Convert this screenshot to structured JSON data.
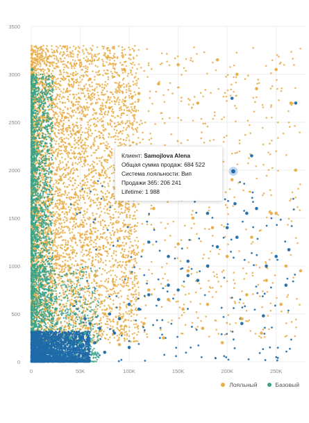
{
  "chart_data": {
    "type": "scatter",
    "x_ticks": [
      "0",
      "50K",
      "100K",
      "150K",
      "200K",
      "250K"
    ],
    "x_tick_values": [
      0,
      50000,
      100000,
      150000,
      200000,
      250000
    ],
    "y_ticks": [
      "0",
      "500",
      "1000",
      "1500",
      "2000",
      "2500",
      "3000",
      "3500"
    ],
    "y_tick_values": [
      0,
      500,
      1000,
      1500,
      2000,
      2500,
      3000,
      3500
    ],
    "xlim": [
      0,
      280000
    ],
    "ylim": [
      0,
      3500
    ],
    "grid": true,
    "legend_position": "bottom-right",
    "series": [
      {
        "name": "Лояльный",
        "color": "#e8ad45",
        "points": [
          [
            5000,
            3150
          ],
          [
            12000,
            2900
          ],
          [
            22000,
            2700
          ],
          [
            35000,
            2550
          ],
          [
            48000,
            2400
          ],
          [
            60000,
            2950
          ],
          [
            80000,
            2650
          ],
          [
            95000,
            3050
          ],
          [
            110000,
            2800
          ],
          [
            130000,
            2900
          ],
          [
            150000,
            3100
          ],
          [
            170000,
            2700
          ],
          [
            190000,
            3150
          ],
          [
            210000,
            3000
          ],
          [
            230000,
            2850
          ],
          [
            250000,
            3050
          ],
          [
            265000,
            2700
          ],
          [
            8000,
            2200
          ],
          [
            18000,
            2050
          ],
          [
            30000,
            1900
          ],
          [
            45000,
            1750
          ],
          [
            55000,
            2100
          ],
          [
            70000,
            1950
          ],
          [
            90000,
            1650
          ],
          [
            105000,
            1850
          ],
          [
            125000,
            1600
          ],
          [
            145000,
            1700
          ],
          [
            165000,
            1500
          ],
          [
            185000,
            1400
          ],
          [
            205000,
            1900
          ],
          [
            225000,
            1300
          ],
          [
            245000,
            1550
          ],
          [
            270000,
            2000
          ],
          [
            6000,
            1400
          ],
          [
            15000,
            1250
          ],
          [
            25000,
            1100
          ],
          [
            38000,
            1000
          ],
          [
            52000,
            1200
          ],
          [
            65000,
            900
          ],
          [
            85000,
            800
          ],
          [
            100000,
            1050
          ],
          [
            120000,
            750
          ],
          [
            140000,
            650
          ],
          [
            160000,
            950
          ],
          [
            180000,
            600
          ],
          [
            200000,
            1100
          ],
          [
            220000,
            700
          ],
          [
            240000,
            850
          ],
          [
            260000,
            1000
          ],
          [
            275000,
            950
          ],
          [
            4000,
            700
          ],
          [
            14000,
            550
          ],
          [
            28000,
            450
          ],
          [
            42000,
            600
          ],
          [
            58000,
            350
          ],
          [
            75000,
            500
          ],
          [
            92000,
            300
          ],
          [
            115000,
            400
          ],
          [
            135000,
            250
          ],
          [
            155000,
            550
          ],
          [
            175000,
            350
          ],
          [
            195000,
            200
          ],
          [
            215000,
            450
          ],
          [
            235000,
            300
          ],
          [
            255000,
            600
          ],
          [
            90000,
            180
          ],
          [
            150000,
            1230
          ],
          [
            250000,
            1550
          ]
        ]
      },
      {
        "name": "Базовый",
        "color": "#3ba38a",
        "points": [
          [
            1000,
            3050
          ],
          [
            2000,
            2800
          ],
          [
            1500,
            2600
          ],
          [
            3000,
            2400
          ],
          [
            2500,
            2200
          ],
          [
            4000,
            2000
          ],
          [
            3500,
            1800
          ],
          [
            5000,
            1600
          ],
          [
            6000,
            1400
          ],
          [
            7000,
            1200
          ],
          [
            9000,
            1000
          ],
          [
            11000,
            800
          ],
          [
            13000,
            700
          ],
          [
            16000,
            600
          ],
          [
            19000,
            500
          ],
          [
            22000,
            450
          ],
          [
            26000,
            400
          ],
          [
            30000,
            350
          ],
          [
            35000,
            300
          ],
          [
            40000,
            250
          ],
          [
            45000,
            500
          ],
          [
            50000,
            200
          ],
          [
            55000,
            300
          ],
          [
            8000,
            900
          ],
          [
            10000,
            1100
          ],
          [
            4000,
            1300
          ],
          [
            2000,
            1500
          ],
          [
            6000,
            1700
          ],
          [
            3000,
            1900
          ],
          [
            1000,
            2100
          ],
          [
            15000,
            850
          ],
          [
            20000,
            650
          ],
          [
            25000,
            550
          ],
          [
            12000,
            950
          ],
          [
            18000,
            750
          ]
        ]
      },
      {
        "name": "",
        "color": "#1f6aa8",
        "points": [
          [
            2000,
            50
          ],
          [
            5000,
            100
          ],
          [
            8000,
            150
          ],
          [
            12000,
            80
          ],
          [
            16000,
            200
          ],
          [
            20000,
            120
          ],
          [
            25000,
            250
          ],
          [
            30000,
            180
          ],
          [
            35000,
            300
          ],
          [
            40000,
            220
          ],
          [
            45000,
            140
          ],
          [
            50000,
            260
          ],
          [
            60000,
            400
          ],
          [
            70000,
            350
          ],
          [
            80000,
            500
          ],
          [
            90000,
            450
          ],
          [
            100000,
            600
          ],
          [
            110000,
            550
          ],
          [
            120000,
            700
          ],
          [
            130000,
            650
          ],
          [
            140000,
            800
          ],
          [
            150000,
            750
          ],
          [
            160000,
            900
          ],
          [
            170000,
            850
          ],
          [
            180000,
            1000
          ],
          [
            190000,
            1200
          ],
          [
            200000,
            1400
          ],
          [
            210000,
            1300
          ],
          [
            220000,
            1550
          ],
          [
            230000,
            1600
          ],
          [
            240000,
            1000
          ],
          [
            250000,
            1100
          ],
          [
            260000,
            800
          ],
          [
            215000,
            400
          ],
          [
            237000,
            480
          ],
          [
            225000,
            2150
          ],
          [
            205000,
            2750
          ],
          [
            270000,
            2700
          ],
          [
            263000,
            1170
          ],
          [
            180000,
            1550
          ],
          [
            208000,
            1650
          ],
          [
            160000,
            1050
          ],
          [
            120000,
            1250
          ],
          [
            140000,
            1100
          ],
          [
            100000,
            150
          ],
          [
            85000,
            300
          ],
          [
            65000,
            200
          ],
          [
            75000,
            100
          ],
          [
            55000,
            450
          ],
          [
            38000,
            80
          ]
        ]
      }
    ],
    "highlighted_point": {
      "x": 206241,
      "y": 1988,
      "color": "#1f6aa8"
    }
  },
  "tooltip": {
    "client_label": "Клиент:",
    "client_name": "Samojlova Alena",
    "total_sales": "Общая сумма продаж: 684 522",
    "loyalty": "Система лояльности: Вип",
    "sales_365": "Продажи 365: 206 241",
    "lifetime": "Lifetime: 1 988"
  },
  "legend": {
    "items": [
      {
        "label": "Лояльный",
        "color": "#e8ad45"
      },
      {
        "label": "Базовый",
        "color": "#3ba38a"
      }
    ]
  }
}
